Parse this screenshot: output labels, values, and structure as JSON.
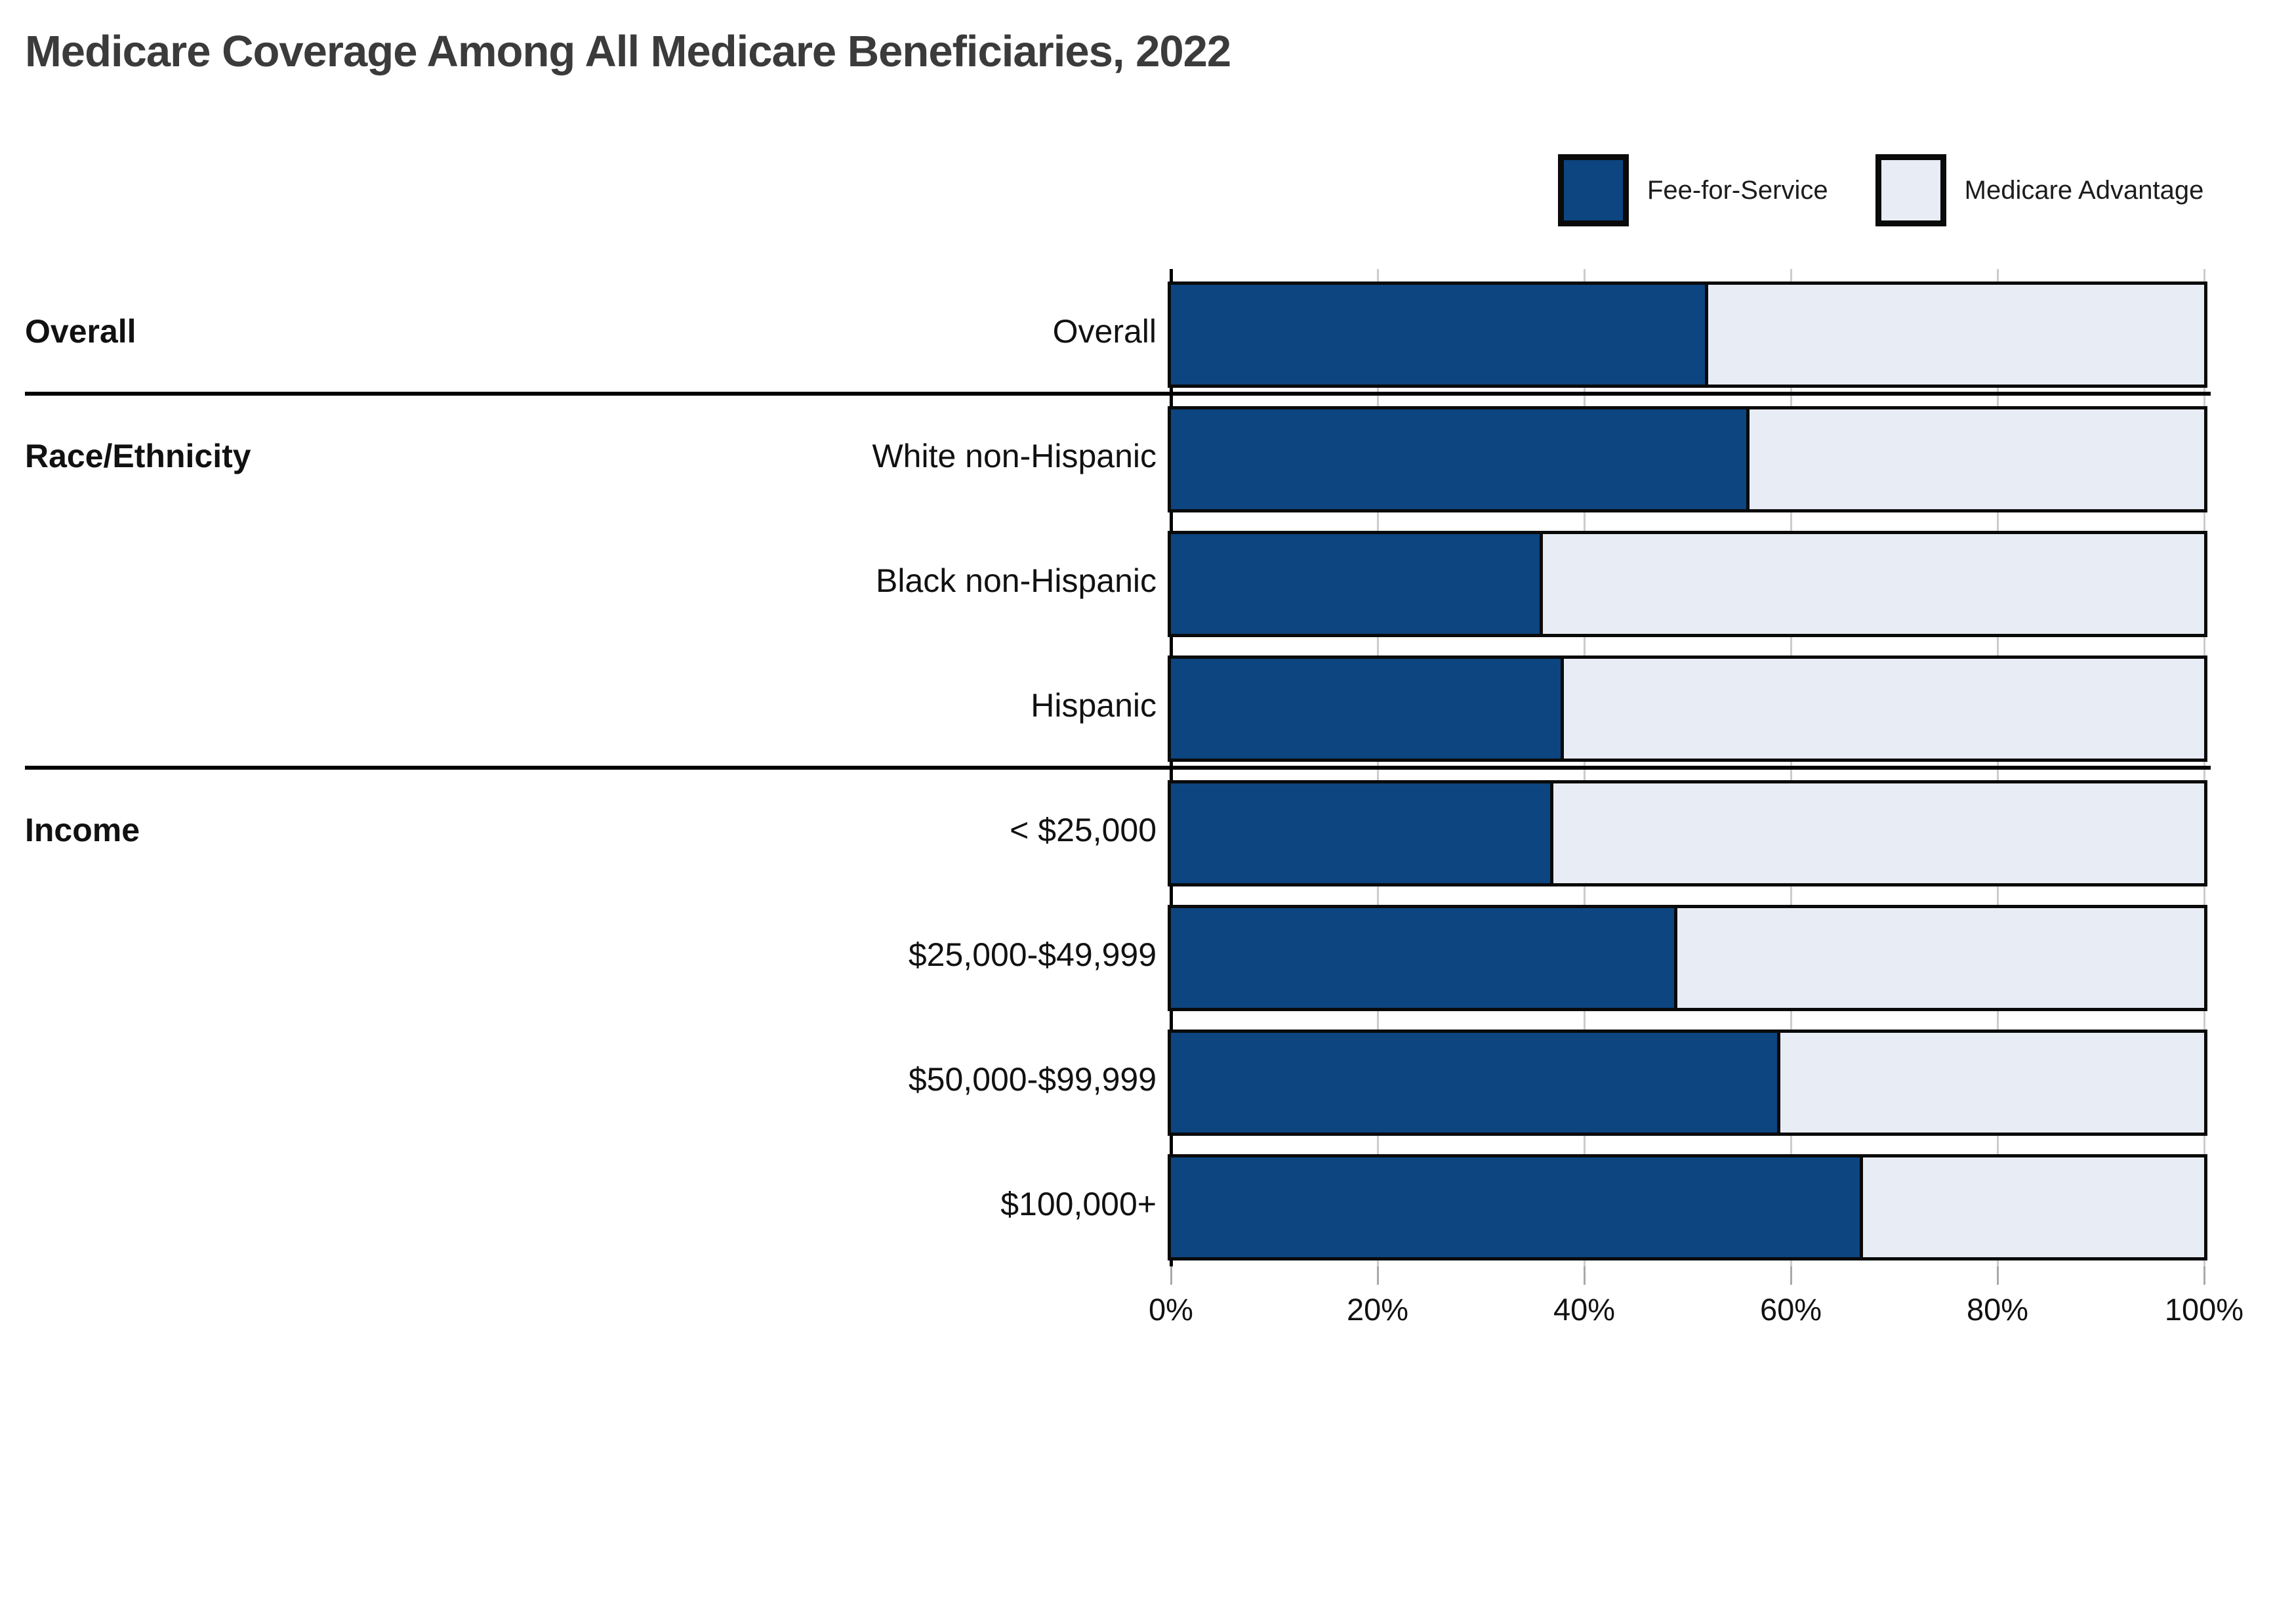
{
  "title": "Medicare Coverage Among All Medicare Beneficiaries, 2022",
  "colors": {
    "fee_for_service": "#0c4580",
    "medicare_advantage": "#e8ecf4",
    "bar_border": "#0a0a0a",
    "separator": "#000000",
    "axis": "#000000",
    "gridline": "#cccccc",
    "tick": "#a9a9a9",
    "title_text": "#3b3b3b",
    "label_text": "#111111"
  },
  "legend": {
    "items": [
      {
        "label": "Fee-for-Service",
        "color": "#0c4580"
      },
      {
        "label": "Medicare Advantage",
        "color": "#e8ecf4"
      }
    ],
    "position": "top-right"
  },
  "chart_data": {
    "type": "bar",
    "stacked": true,
    "orientation": "horizontal",
    "title": "Medicare Coverage Among All Medicare Beneficiaries, 2022",
    "categories": [
      "Overall",
      "White non-Hispanic",
      "Black non-Hispanic",
      "Hispanic",
      "< $25,000",
      "$25,000-$49,999",
      "$50,000-$99,999",
      "$100,000+"
    ],
    "groups": [
      {
        "label": "Overall",
        "first_row": 0,
        "row_count": 1
      },
      {
        "label": "Race/Ethnicity",
        "first_row": 1,
        "row_count": 3
      },
      {
        "label": "Income",
        "first_row": 4,
        "row_count": 4
      }
    ],
    "series": [
      {
        "name": "Fee-for-Service",
        "color": "#0c4580",
        "values": [
          52,
          56,
          36,
          38,
          37,
          49,
          59,
          67
        ]
      },
      {
        "name": "Medicare Advantage",
        "color": "#e8ecf4",
        "values": [
          48,
          44,
          64,
          62,
          63,
          51,
          41,
          33
        ]
      }
    ],
    "xlim": [
      0,
      100
    ],
    "x_tick_labels": [
      "0%",
      "20%",
      "40%",
      "60%",
      "80%",
      "100%"
    ],
    "grid": true,
    "legend_position": "top-right"
  }
}
